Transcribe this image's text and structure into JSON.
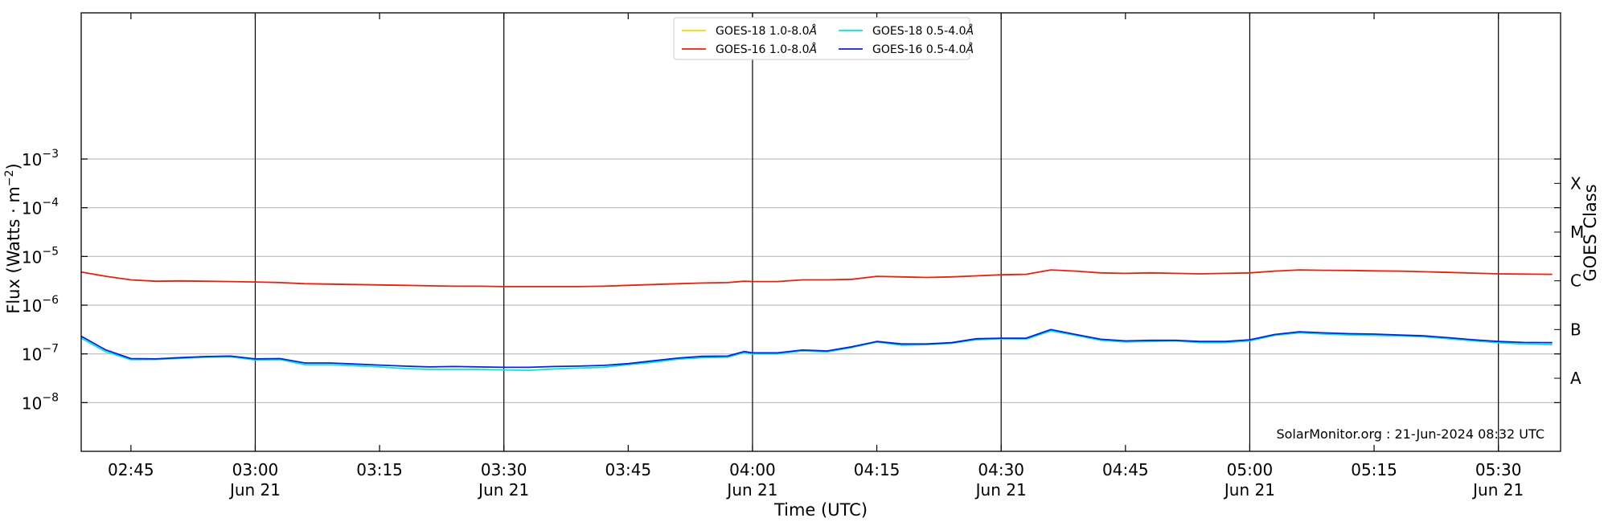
{
  "chart_data": {
    "type": "line",
    "ylabel_main": "Flux (Watts · m",
    "ylabel_sup": "−2",
    "ylabel_close": ")",
    "xlabel": "Time (UTC)",
    "right_label": "GOES Class",
    "watermark": "SolarMonitor.org : 21-Jun-2024 08:32 UTC",
    "yscale": "log",
    "ylim": [
      -9.0,
      0.0
    ],
    "xlim": [
      39.0,
      217.5
    ],
    "x_units": "minutes after 02:00 UTC, 21-Jun-2024",
    "grid": true,
    "legend_position": "top-center",
    "y_ticks": [
      {
        "exp": -3,
        "mant": "10",
        "sup": "−3"
      },
      {
        "exp": -4,
        "mant": "10",
        "sup": "−4"
      },
      {
        "exp": -5,
        "mant": "10",
        "sup": "−5"
      },
      {
        "exp": -6,
        "mant": "10",
        "sup": "−6"
      },
      {
        "exp": -7,
        "mant": "10",
        "sup": "−7"
      },
      {
        "exp": -8,
        "mant": "10",
        "sup": "−8"
      }
    ],
    "x_ticks": [
      {
        "x": 45,
        "label": "02:45",
        "sub": ""
      },
      {
        "x": 60,
        "label": "03:00",
        "sub": "Jun 21"
      },
      {
        "x": 75,
        "label": "03:15",
        "sub": ""
      },
      {
        "x": 90,
        "label": "03:30",
        "sub": "Jun 21"
      },
      {
        "x": 105,
        "label": "03:45",
        "sub": ""
      },
      {
        "x": 120,
        "label": "04:00",
        "sub": "Jun 21"
      },
      {
        "x": 135,
        "label": "04:15",
        "sub": ""
      },
      {
        "x": 150,
        "label": "04:30",
        "sub": "Jun 21"
      },
      {
        "x": 165,
        "label": "04:45",
        "sub": ""
      },
      {
        "x": 180,
        "label": "05:00",
        "sub": "Jun 21"
      },
      {
        "x": 195,
        "label": "05:15",
        "sub": ""
      },
      {
        "x": 210,
        "label": "05:30",
        "sub": "Jun 21"
      }
    ],
    "vlines": [
      60,
      90,
      120,
      150,
      180,
      210
    ],
    "goes_classes": [
      {
        "label": "X",
        "value": -3.5
      },
      {
        "label": "M",
        "value": -4.5
      },
      {
        "label": "C",
        "value": -5.5
      },
      {
        "label": "B",
        "value": -6.5
      },
      {
        "label": "A",
        "value": -7.5
      }
    ],
    "series": [
      {
        "name": "GOES-18 1.0-8.0",
        "name_suffix": "Å",
        "color": "#ffd700",
        "x": [],
        "y": []
      },
      {
        "name": "GOES-18 0.5-4.0",
        "name_suffix": "Å",
        "color": "#00e5e5",
        "x": [
          39,
          42,
          45,
          48,
          51,
          54,
          57,
          60,
          63,
          66,
          69,
          72,
          75,
          78,
          81,
          84,
          87,
          90,
          93,
          96,
          99,
          102,
          105,
          108,
          111,
          114,
          117,
          119,
          120,
          123,
          126,
          129,
          132,
          135,
          138,
          141,
          144,
          147,
          150,
          153,
          156,
          159,
          162,
          165,
          168,
          171,
          174,
          177,
          180,
          183,
          186,
          189,
          192,
          195,
          198,
          201,
          204,
          207,
          210,
          213,
          216.5
        ],
        "y": [
          2.1e-07,
          1.1e-07,
          7.6e-08,
          7.7e-08,
          8.1e-08,
          8.5e-08,
          8.7e-08,
          7.5e-08,
          7.6e-08,
          6e-08,
          6e-08,
          5.7e-08,
          5.4e-08,
          5e-08,
          4.8e-08,
          4.8e-08,
          4.8e-08,
          4.7e-08,
          4.6e-08,
          4.9e-08,
          5.1e-08,
          5.3e-08,
          6e-08,
          6.7e-08,
          7.8e-08,
          8.4e-08,
          8.5e-08,
          1.06e-07,
          1e-07,
          1e-07,
          1.15e-07,
          1.1e-07,
          1.35e-07,
          1.75e-07,
          1.5e-07,
          1.55e-07,
          1.65e-07,
          1.95e-07,
          2.05e-07,
          2e-07,
          2.95e-07,
          2.4e-07,
          1.9e-07,
          1.75e-07,
          1.8e-07,
          1.85e-07,
          1.7e-07,
          1.7e-07,
          1.85e-07,
          2.4e-07,
          2.7e-07,
          2.55e-07,
          2.45e-07,
          2.4e-07,
          2.35e-07,
          2.25e-07,
          2.05e-07,
          1.85e-07,
          1.7e-07,
          1.6e-07,
          1.55e-07
        ]
      },
      {
        "name": "GOES-16 1.0-8.0",
        "name_suffix": "Å",
        "color": "#e8200c",
        "x": [
          39,
          42,
          45,
          48,
          51,
          54,
          57,
          60,
          63,
          66,
          69,
          72,
          75,
          78,
          81,
          84,
          87,
          90,
          93,
          96,
          99,
          102,
          105,
          108,
          111,
          114,
          117,
          119,
          120,
          123,
          126,
          129,
          132,
          135,
          138,
          141,
          144,
          147,
          150,
          153,
          156,
          159,
          162,
          165,
          168,
          171,
          174,
          177,
          180,
          183,
          186,
          189,
          192,
          195,
          198,
          201,
          204,
          207,
          210,
          213,
          216.5
        ],
        "y": [
          4.8e-06,
          3.9e-06,
          3.3e-06,
          3.1e-06,
          3.15e-06,
          3.1e-06,
          3.05e-06,
          3e-06,
          2.9e-06,
          2.75e-06,
          2.7e-06,
          2.65e-06,
          2.6e-06,
          2.55e-06,
          2.5e-06,
          2.45e-06,
          2.45e-06,
          2.4e-06,
          2.4e-06,
          2.4e-06,
          2.4e-06,
          2.45e-06,
          2.55e-06,
          2.65e-06,
          2.75e-06,
          2.85e-06,
          2.9e-06,
          3.1e-06,
          3.05e-06,
          3.05e-06,
          3.3e-06,
          3.3e-06,
          3.4e-06,
          3.9e-06,
          3.8e-06,
          3.7e-06,
          3.8e-06,
          4e-06,
          4.2e-06,
          4.3e-06,
          5.3e-06,
          5e-06,
          4.6e-06,
          4.5e-06,
          4.6e-06,
          4.5e-06,
          4.4e-06,
          4.5e-06,
          4.6e-06,
          5e-06,
          5.3e-06,
          5.2e-06,
          5.15e-06,
          5.05e-06,
          5e-06,
          4.85e-06,
          4.7e-06,
          4.55e-06,
          4.4e-06,
          4.35e-06,
          4.3e-06
        ]
      },
      {
        "name": "GOES-16 0.5-4.0",
        "name_suffix": "Å",
        "color": "#1020d8",
        "x": [
          39,
          42,
          45,
          48,
          51,
          54,
          57,
          60,
          63,
          66,
          69,
          72,
          75,
          78,
          81,
          84,
          87,
          90,
          93,
          96,
          99,
          102,
          105,
          108,
          111,
          114,
          117,
          119,
          120,
          123,
          126,
          129,
          132,
          135,
          138,
          141,
          144,
          147,
          150,
          153,
          156,
          159,
          162,
          165,
          168,
          171,
          174,
          177,
          180,
          183,
          186,
          189,
          192,
          195,
          198,
          201,
          204,
          207,
          210,
          213,
          216.5
        ],
        "y": [
          2.3e-07,
          1.2e-07,
          8e-08,
          7.9e-08,
          8.4e-08,
          8.8e-08,
          9e-08,
          7.9e-08,
          8e-08,
          6.5e-08,
          6.5e-08,
          6.2e-08,
          5.9e-08,
          5.6e-08,
          5.4e-08,
          5.5e-08,
          5.4e-08,
          5.3e-08,
          5.3e-08,
          5.5e-08,
          5.6e-08,
          5.8e-08,
          6.3e-08,
          7.2e-08,
          8.2e-08,
          8.9e-08,
          9e-08,
          1.12e-07,
          1.05e-07,
          1.05e-07,
          1.2e-07,
          1.15e-07,
          1.4e-07,
          1.8e-07,
          1.6e-07,
          1.6e-07,
          1.7e-07,
          2.05e-07,
          2.1e-07,
          2.1e-07,
          3.15e-07,
          2.5e-07,
          2e-07,
          1.85e-07,
          1.9e-07,
          1.9e-07,
          1.8e-07,
          1.8e-07,
          1.95e-07,
          2.5e-07,
          2.85e-07,
          2.7e-07,
          2.6e-07,
          2.55e-07,
          2.45e-07,
          2.35e-07,
          2.15e-07,
          1.95e-07,
          1.8e-07,
          1.72e-07,
          1.7e-07
        ]
      }
    ]
  }
}
